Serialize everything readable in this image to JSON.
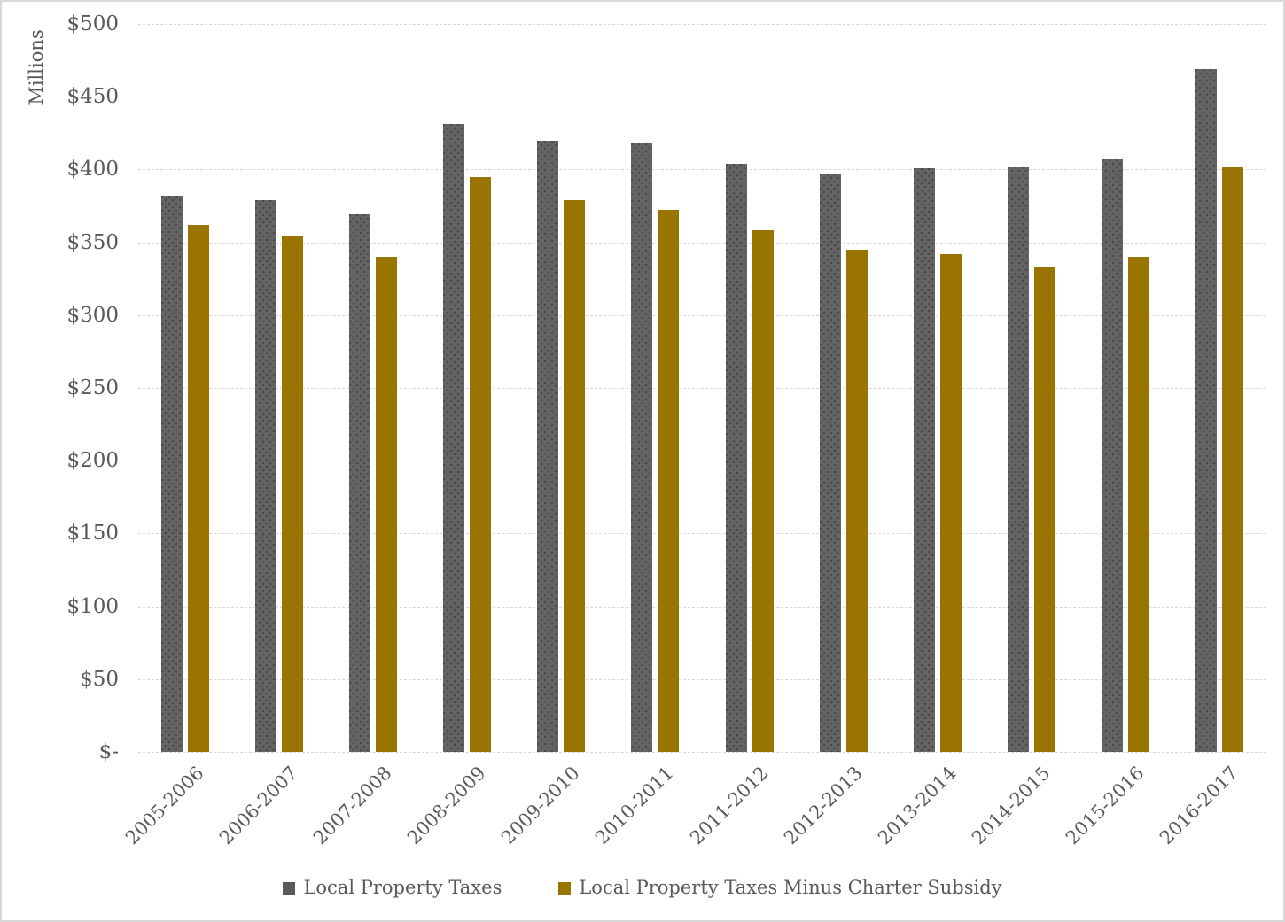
{
  "chart_data": {
    "type": "bar",
    "title": "",
    "ylabel": "Millions",
    "xlabel": "",
    "categories": [
      "2005-2006",
      "2006-2007",
      "2007-2008",
      "2008-2009",
      "2009-2010",
      "2010-2011",
      "2011-2012",
      "2012-2013",
      "2013-2014",
      "2014-2015",
      "2015-2016",
      "2016-2017"
    ],
    "series": [
      {
        "name": "Local Property Taxes",
        "color": "#636363",
        "values": [
          382,
          379,
          369,
          431,
          420,
          418,
          404,
          397,
          401,
          402,
          407,
          469
        ]
      },
      {
        "name": "Local Property Taxes Minus Charter Subsidy",
        "color": "#9a7400",
        "values": [
          362,
          354,
          340,
          395,
          379,
          372,
          358,
          345,
          342,
          333,
          340,
          402
        ]
      }
    ],
    "ylim": [
      0,
      500
    ],
    "ytick_step": 50,
    "ytick_labels": [
      "$-",
      "$50",
      "$100",
      "$150",
      "$200",
      "$250",
      "$300",
      "$350",
      "$400",
      "$450",
      "$500"
    ],
    "grid": true,
    "gridline_color": "#d9d9d9",
    "legend_position": "bottom",
    "text_color": "#595959"
  }
}
